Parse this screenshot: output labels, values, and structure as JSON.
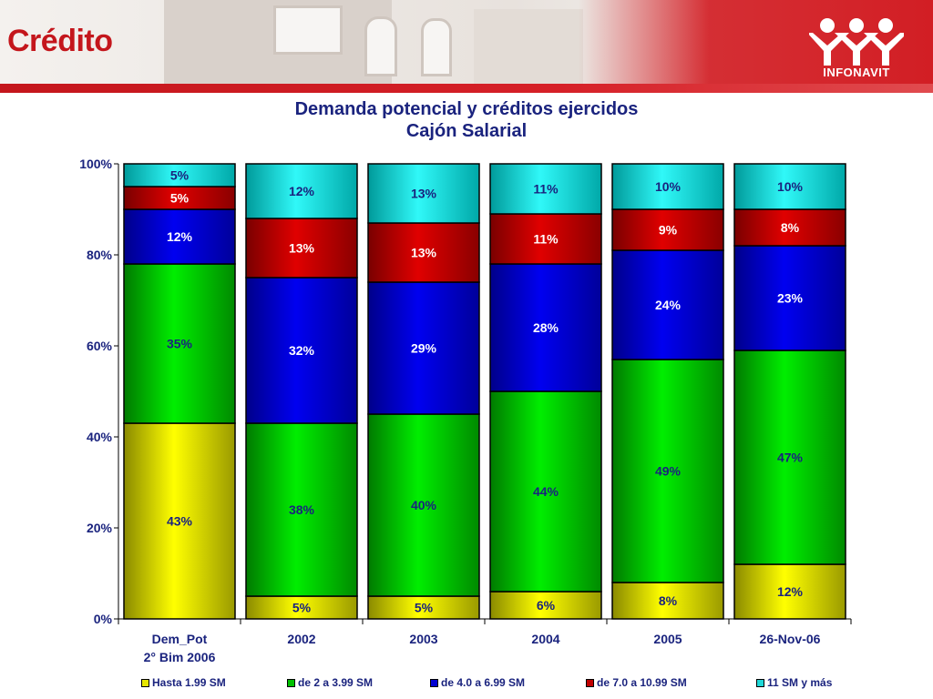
{
  "header": {
    "title": "Crédito",
    "logo_text": "INFONAVIT"
  },
  "colors": {
    "brand_red": "#c4161c",
    "title_navy": "#1a237e"
  },
  "chart_data": {
    "type": "bar",
    "stacked": true,
    "title": "Demanda potencial y créditos ejercidos",
    "subtitle": "Cajón Salarial",
    "categories": [
      [
        "Dem_Pot",
        "2° Bim 2006"
      ],
      [
        "2002"
      ],
      [
        "2003"
      ],
      [
        "2004"
      ],
      [
        "2005"
      ],
      [
        "26-Nov-06"
      ]
    ],
    "y_ticks": [
      "0%",
      "20%",
      "40%",
      "60%",
      "80%",
      "100%"
    ],
    "ylim": [
      0,
      100
    ],
    "legend_position": "bottom",
    "series": [
      {
        "name": "Hasta 1.99 SM",
        "color": "yellow",
        "values": [
          43,
          5,
          5,
          6,
          8,
          12
        ],
        "labels": [
          "43%",
          "5%",
          "5%",
          "6%",
          "8%",
          "12%"
        ]
      },
      {
        "name": "de 2 a 3.99 SM",
        "color": "green",
        "values": [
          35,
          38,
          40,
          44,
          49,
          47
        ],
        "labels": [
          "35%",
          "38%",
          "40%",
          "44%",
          "49%",
          "47%"
        ]
      },
      {
        "name": "de 4.0 a 6.99 SM",
        "color": "blue",
        "values": [
          12,
          32,
          29,
          28,
          24,
          23
        ],
        "labels": [
          "12%",
          "32%",
          "29%",
          "28%",
          "24%",
          "23%"
        ]
      },
      {
        "name": "de 7.0 a 10.99 SM",
        "color": "red",
        "values": [
          5,
          13,
          13,
          11,
          9,
          8
        ],
        "labels": [
          "5%",
          "13%",
          "13%",
          "11%",
          "9%",
          "8%"
        ]
      },
      {
        "name": "11 SM y más",
        "color": "cyan",
        "values": [
          5,
          12,
          13,
          11,
          10,
          10
        ],
        "labels": [
          "5%",
          "12%",
          "13%",
          "11%",
          "10%",
          "10%"
        ]
      }
    ]
  }
}
